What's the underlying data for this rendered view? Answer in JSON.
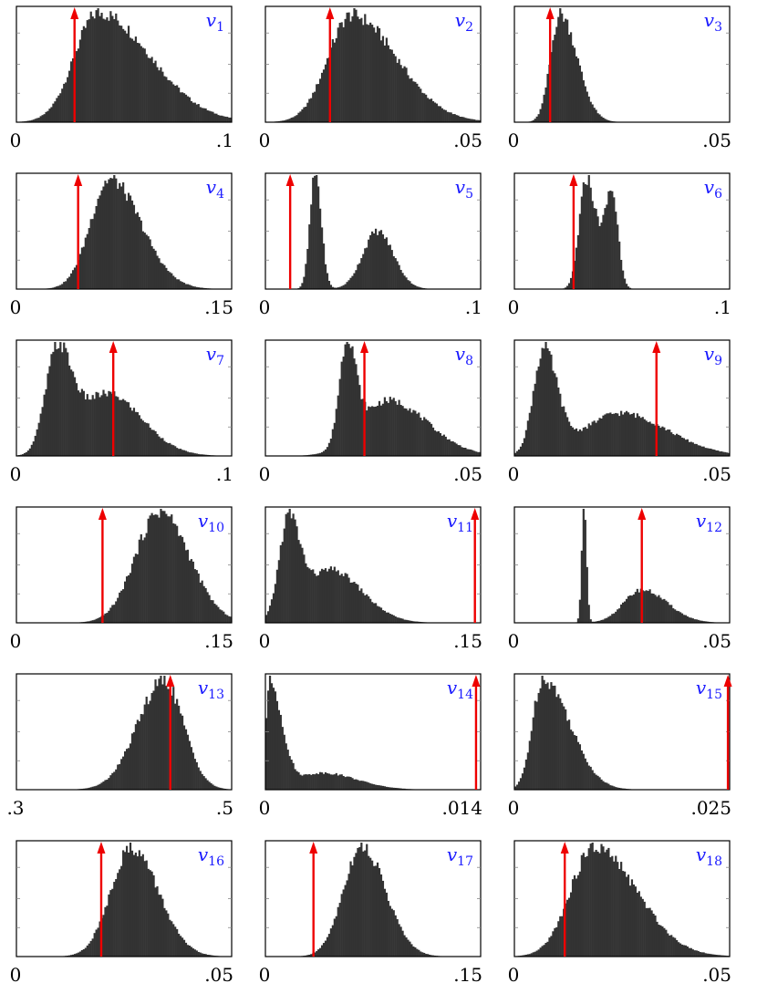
{
  "chart_data": [
    {
      "type": "histogram",
      "label": {
        "base": "v",
        "sub": "1"
      },
      "x_ticks": [
        "0",
        ".1"
      ],
      "xlim": [
        0,
        0.1
      ],
      "marker": 0.027,
      "dist": [
        {
          "c": 0.038,
          "s": 0.011,
          "w": 1,
          "sk": 2.2
        }
      ]
    },
    {
      "type": "histogram",
      "label": {
        "base": "v",
        "sub": "2"
      },
      "x_ticks": [
        "0",
        ".05"
      ],
      "xlim": [
        0,
        0.05
      ],
      "marker": 0.015,
      "dist": [
        {
          "c": 0.02,
          "s": 0.0055,
          "w": 1,
          "sk": 1.9
        }
      ]
    },
    {
      "type": "histogram",
      "label": {
        "base": "v",
        "sub": "3"
      },
      "x_ticks": [
        "0",
        ".05"
      ],
      "xlim": [
        0,
        0.05
      ],
      "marker": 0.0083,
      "dist": [
        {
          "c": 0.0106,
          "s": 0.0022,
          "w": 1,
          "sk": 1.8
        }
      ]
    },
    {
      "type": "histogram",
      "label": {
        "base": "v",
        "sub": "4"
      },
      "x_ticks": [
        "0",
        ".15"
      ],
      "xlim": [
        0,
        0.15
      ],
      "marker": 0.043,
      "dist": [
        {
          "c": 0.065,
          "s": 0.0135,
          "w": 1,
          "sk": 1.6
        }
      ]
    },
    {
      "type": "histogram",
      "label": {
        "base": "v",
        "sub": "5"
      },
      "x_ticks": [
        "0",
        ".1"
      ],
      "xlim": [
        0,
        0.1
      ],
      "marker": 0.0115,
      "dist": [
        {
          "c": 0.0232,
          "s": 0.0025,
          "w": 1,
          "sk": 1.1
        },
        {
          "c": 0.052,
          "s": 0.0068,
          "w": 0.5,
          "sk": 1.1
        }
      ]
    },
    {
      "type": "histogram",
      "label": {
        "base": "v",
        "sub": "6"
      },
      "x_ticks": [
        "0",
        ".1"
      ],
      "xlim": [
        0,
        0.1
      ],
      "marker": 0.0275,
      "dist": [
        {
          "c": 0.033,
          "s": 0.0032,
          "w": 1,
          "sk": 1
        },
        {
          "c": 0.0455,
          "s": 0.0028,
          "w": 0.92,
          "sk": 1
        },
        {
          "c": 0.039,
          "s": 0.004,
          "w": 0.5,
          "sk": 1
        }
      ]
    },
    {
      "type": "histogram",
      "label": {
        "base": "v",
        "sub": "7"
      },
      "x_ticks": [
        "0",
        ".1"
      ],
      "xlim": [
        0,
        0.1
      ],
      "marker": 0.045,
      "dist": [
        {
          "c": 0.019,
          "s": 0.0055,
          "w": 1,
          "sk": 1.2
        },
        {
          "c": 0.042,
          "s": 0.0125,
          "w": 0.62,
          "sk": 1.3
        }
      ]
    },
    {
      "type": "histogram",
      "label": {
        "base": "v",
        "sub": "8"
      },
      "x_ticks": [
        "0",
        ".05"
      ],
      "xlim": [
        0,
        0.05
      ],
      "marker": 0.023,
      "dist": [
        {
          "c": 0.019,
          "s": 0.0018,
          "w": 1,
          "sk": 1.1
        },
        {
          "c": 0.0285,
          "s": 0.0065,
          "w": 0.55,
          "sk": 1.4
        }
      ]
    },
    {
      "type": "histogram",
      "label": {
        "base": "v",
        "sub": "9"
      },
      "x_ticks": [
        "0",
        ".05"
      ],
      "xlim": [
        0,
        0.05
      ],
      "marker": 0.033,
      "dist": [
        {
          "c": 0.0068,
          "s": 0.0024,
          "w": 1,
          "sk": 1.3
        },
        {
          "c": 0.0245,
          "s": 0.0085,
          "w": 0.42,
          "sk": 1.3
        }
      ]
    },
    {
      "type": "histogram",
      "label": {
        "base": "v",
        "sub": "10"
      },
      "x_ticks": [
        "0",
        ".15"
      ],
      "xlim": [
        0,
        0.15
      ],
      "marker": 0.06,
      "dist": [
        {
          "c": 0.1,
          "s": 0.017,
          "w": 1,
          "sk": 1.2
        }
      ]
    },
    {
      "type": "histogram",
      "label": {
        "base": "v",
        "sub": "11"
      },
      "x_ticks": [
        "0",
        ".15"
      ],
      "xlim": [
        0,
        0.15
      ],
      "marker": 0.146,
      "dist": [
        {
          "c": 0.016,
          "s": 0.0065,
          "w": 1,
          "sk": 1.2
        },
        {
          "c": 0.045,
          "s": 0.017,
          "w": 0.55,
          "sk": 1.3
        }
      ]
    },
    {
      "type": "histogram",
      "label": {
        "base": "v",
        "sub": "12"
      },
      "x_ticks": [
        "0",
        ".05"
      ],
      "xlim": [
        0,
        0.05
      ],
      "marker": 0.0296,
      "dist": [
        {
          "c": 0.0162,
          "s": 0.00055,
          "w": 1,
          "sk": 1
        },
        {
          "c": 0.0296,
          "s": 0.0042,
          "w": 0.28,
          "sk": 1.4
        }
      ]
    },
    {
      "type": "histogram",
      "label": {
        "base": "v",
        "sub": "13"
      },
      "x_ticks": [
        ".3",
        ".5"
      ],
      "xlim": [
        0.3,
        0.5
      ],
      "marker": 0.443,
      "dist": [
        {
          "c": 0.437,
          "s": 0.0245,
          "w": 1,
          "sk": 0.75
        }
      ]
    },
    {
      "type": "histogram",
      "label": {
        "base": "v",
        "sub": "14"
      },
      "x_ticks": [
        "0",
        ".014"
      ],
      "xlim": [
        0,
        0.014
      ],
      "marker": 0.0137,
      "dist": [
        {
          "c": 0.0003,
          "s": 0.00028,
          "w": 1,
          "sk": 2.8
        },
        {
          "c": 0.0037,
          "s": 0.0016,
          "w": 0.16,
          "sk": 1.4
        }
      ]
    },
    {
      "type": "histogram",
      "label": {
        "base": "v",
        "sub": "15"
      },
      "x_ticks": [
        "0",
        ".025"
      ],
      "xlim": [
        0,
        0.025
      ],
      "marker": 0.0248,
      "dist": [
        {
          "c": 0.0033,
          "s": 0.0012,
          "w": 1,
          "sk": 2.6
        }
      ]
    },
    {
      "type": "histogram",
      "label": {
        "base": "v",
        "sub": "16"
      },
      "x_ticks": [
        "0",
        ".05"
      ],
      "xlim": [
        0,
        0.05
      ],
      "marker": 0.0197,
      "dist": [
        {
          "c": 0.0267,
          "s": 0.0048,
          "w": 1,
          "sk": 1.3
        }
      ]
    },
    {
      "type": "histogram",
      "label": {
        "base": "v",
        "sub": "17"
      },
      "x_ticks": [
        "0",
        ".15"
      ],
      "xlim": [
        0,
        0.15
      ],
      "marker": 0.0335,
      "dist": [
        {
          "c": 0.067,
          "s": 0.0128,
          "w": 1,
          "sk": 1.3
        }
      ]
    },
    {
      "type": "histogram",
      "label": {
        "base": "v",
        "sub": "18"
      },
      "x_ticks": [
        "0",
        ".05"
      ],
      "xlim": [
        0,
        0.05
      ],
      "marker": 0.0117,
      "dist": [
        {
          "c": 0.0185,
          "s": 0.0055,
          "w": 1,
          "sk": 1.8
        }
      ]
    }
  ]
}
